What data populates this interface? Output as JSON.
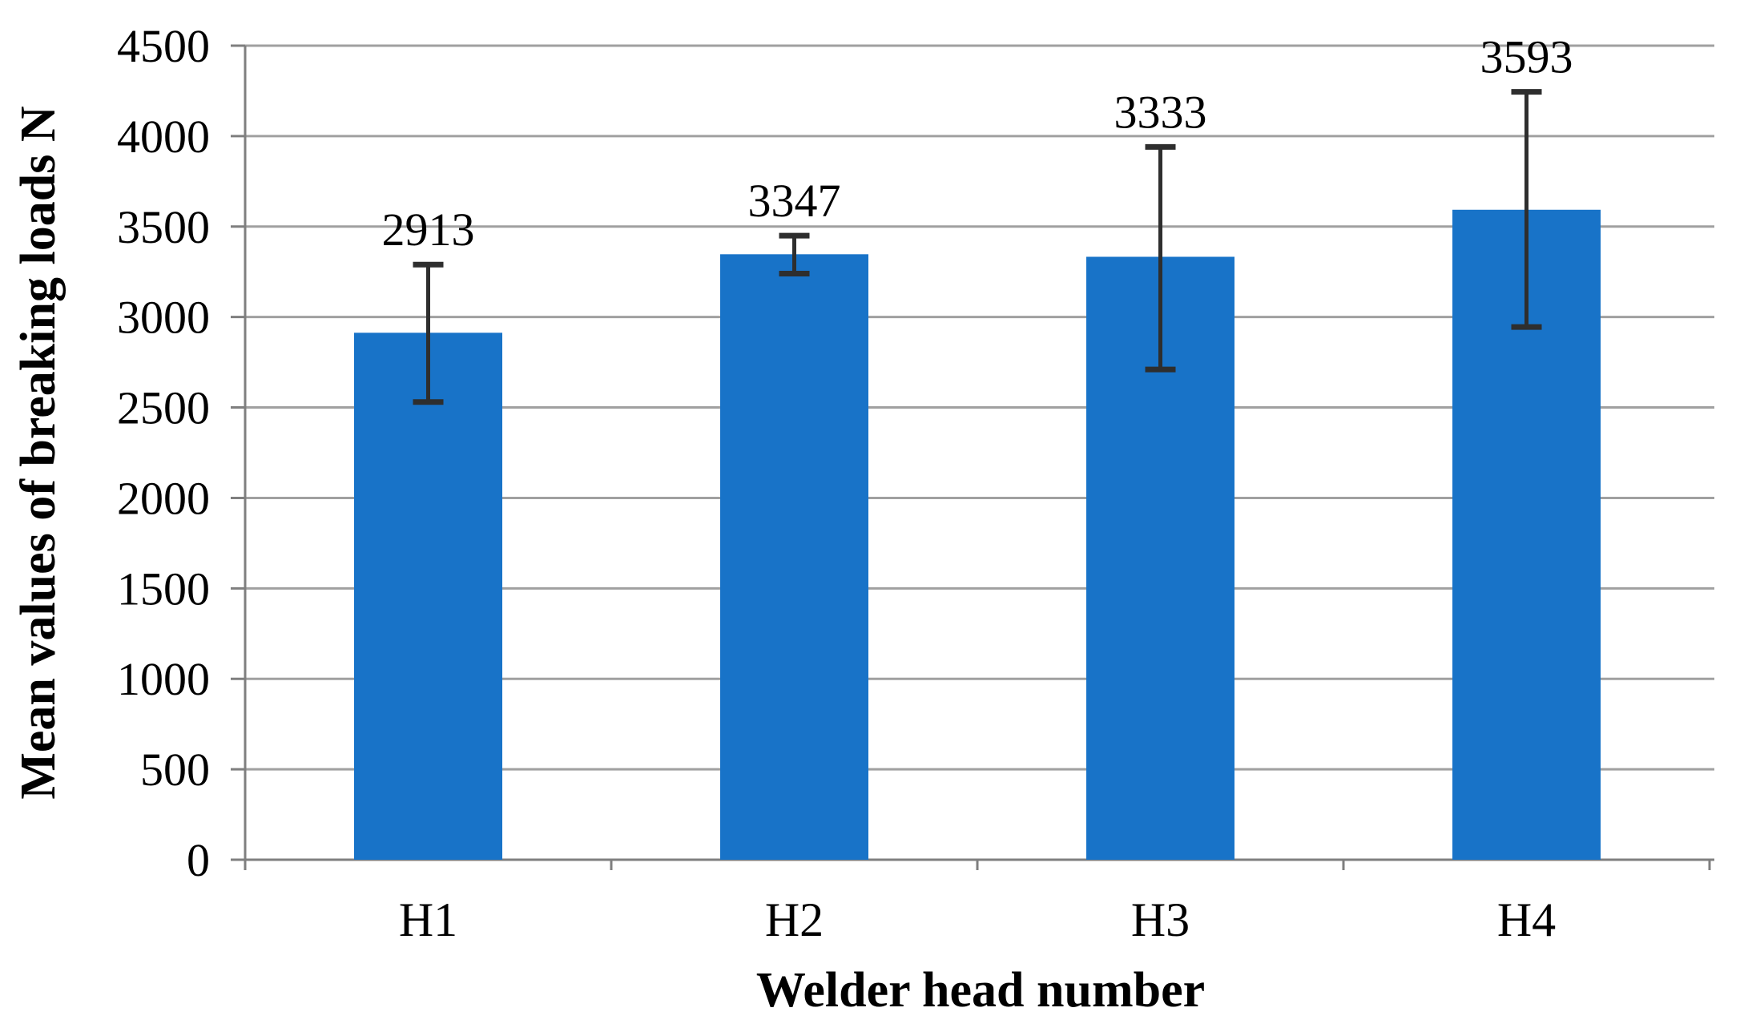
{
  "chart_data": {
    "type": "bar",
    "title": "",
    "categories": [
      "H1",
      "H2",
      "H3",
      "H4"
    ],
    "values": [
      2913,
      3347,
      3333,
      3593
    ],
    "data_labels": [
      "2913",
      "3347",
      "3333",
      "3593"
    ],
    "error_upper": [
      3290,
      3450,
      3940,
      4245
    ],
    "error_lower": [
      2530,
      3240,
      2710,
      2945
    ],
    "xlabel": "Welder head number",
    "ylabel": "Mean values of breaking loads N",
    "ylim": [
      0,
      4500
    ],
    "ytick_interval": 500,
    "ytick_labels": [
      "0",
      "500",
      "1000",
      "1500",
      "2000",
      "2500",
      "3000",
      "3500",
      "4000",
      "4500"
    ],
    "grid": true,
    "legend": "none",
    "colors": {
      "bar": "#1873C8",
      "gridline": "#A0A0A0",
      "axis": "#7F7F7F",
      "error_bar": "#2E2E2E",
      "text": "#000000",
      "background": "#FFFFFF"
    }
  }
}
